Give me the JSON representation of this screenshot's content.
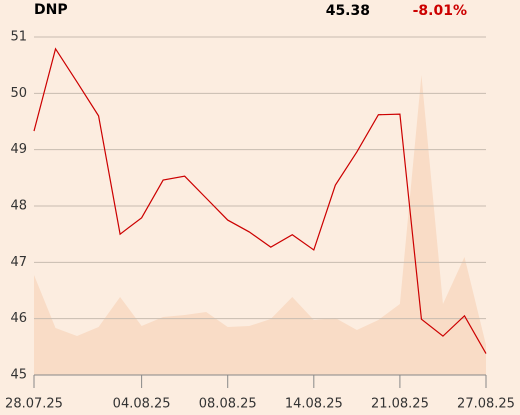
{
  "chart_data": {
    "type": "line",
    "header": {
      "name": "DNP",
      "last": "45.38",
      "change": "-8.01%",
      "change_color": "#cc0000"
    },
    "categories": [
      "28.07.25",
      null,
      null,
      null,
      null,
      "04.08.25",
      null,
      null,
      null,
      "08.08.25",
      null,
      null,
      null,
      "14.08.25",
      null,
      null,
      null,
      "21.08.25",
      null,
      null,
      null,
      "27.08.25"
    ],
    "series": [
      {
        "color": "#cc0000",
        "values": [
          49.33,
          50.79,
          50.2,
          49.6,
          47.5,
          47.79,
          48.46,
          48.53,
          48.14,
          47.75,
          47.54,
          47.27,
          47.49,
          47.22,
          48.37,
          48.96,
          49.62,
          49.63,
          45.99,
          45.69,
          46.05,
          45.38
        ]
      },
      {
        "color": "#f9dcc6",
        "axis": "y2",
        "kind": "area",
        "values": [
          100,
          47,
          39,
          48,
          78,
          49,
          58,
          60,
          63,
          48,
          49,
          56,
          78,
          55,
          57,
          45,
          55,
          71,
          300,
          71,
          118,
          30
        ]
      }
    ],
    "ylim": [
      45,
      51
    ],
    "yticks": [
      45,
      46,
      47,
      48,
      49,
      50,
      51
    ],
    "y2lim": [
      0,
      338
    ],
    "grid": true
  }
}
